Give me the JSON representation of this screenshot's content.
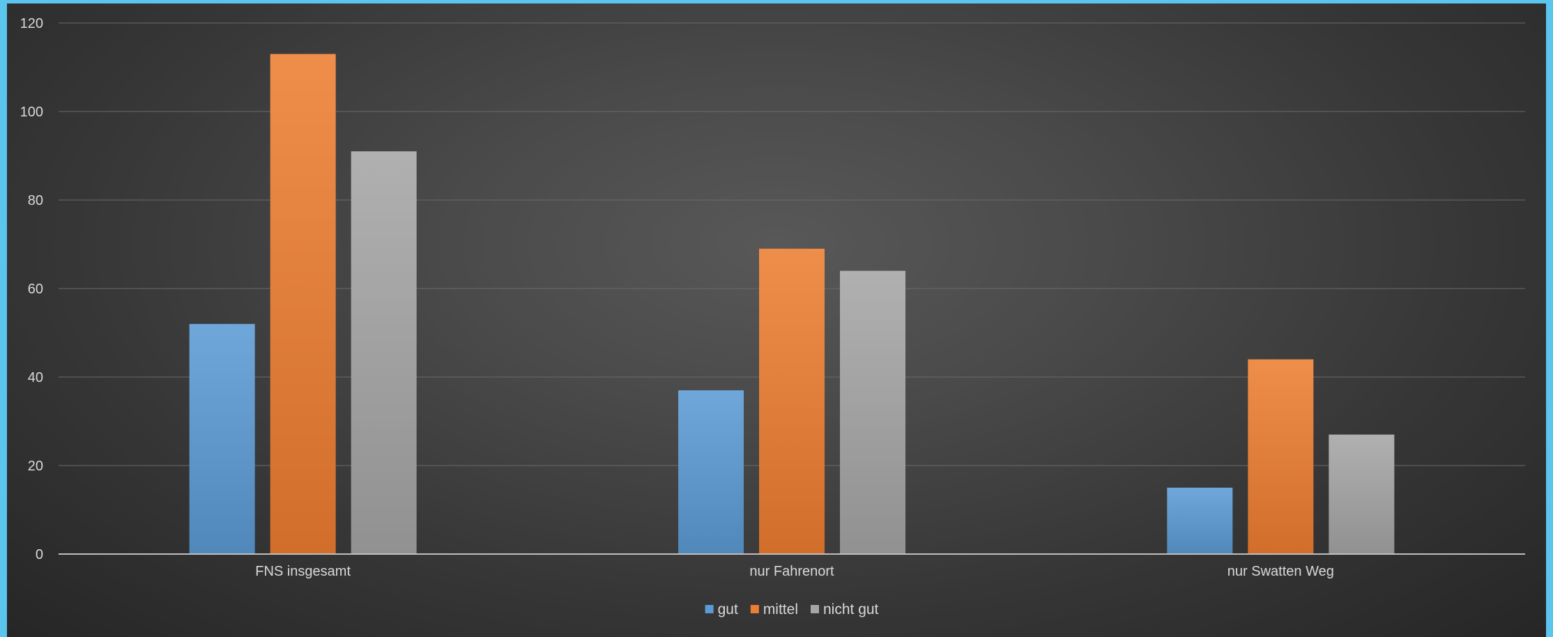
{
  "chart_data": {
    "type": "bar",
    "categories": [
      "FNS insgesamt",
      "nur Fahrenort",
      "nur Swatten Weg"
    ],
    "series": [
      {
        "name": "gut",
        "values": [
          52,
          37,
          15
        ],
        "color": "#5b9bd5"
      },
      {
        "name": "mittel",
        "values": [
          113,
          69,
          44
        ],
        "color": "#ed7d31"
      },
      {
        "name": "nicht gut",
        "values": [
          91,
          64,
          27
        ],
        "color": "#a5a5a5"
      }
    ],
    "title": "",
    "xlabel": "",
    "ylabel": "",
    "ylim": [
      0,
      120
    ],
    "yticks": [
      0,
      20,
      40,
      60,
      80,
      100,
      120
    ],
    "grid": true,
    "legend_position": "bottom"
  }
}
